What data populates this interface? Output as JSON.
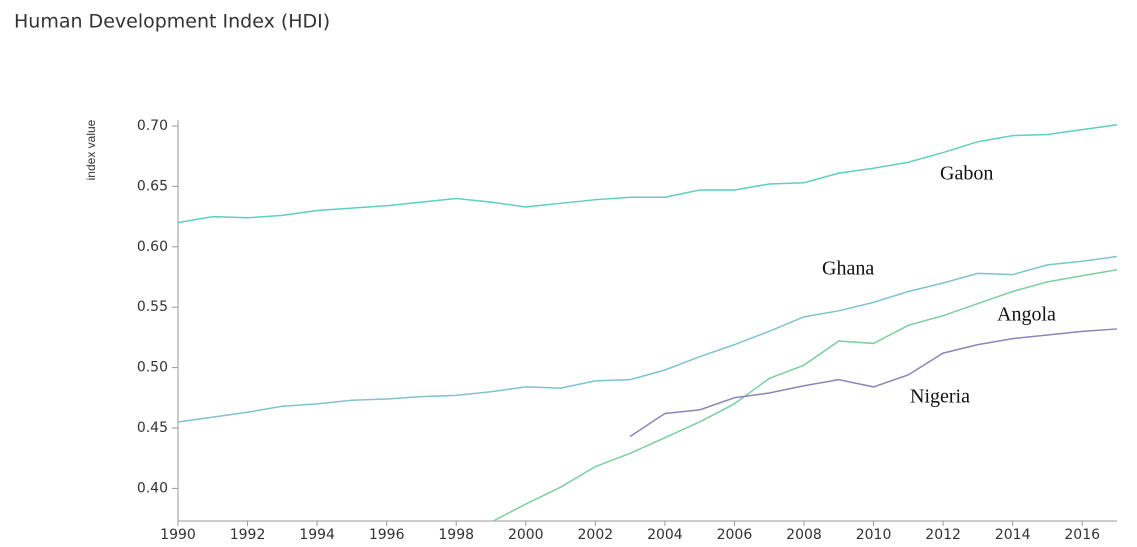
{
  "chart_data": {
    "type": "line",
    "title": "Human Development Index (HDI)",
    "ylabel": "index value",
    "x": [
      1990,
      1991,
      1992,
      1993,
      1994,
      1995,
      1996,
      1997,
      1998,
      1999,
      2000,
      2001,
      2002,
      2003,
      2004,
      2005,
      2006,
      2007,
      2008,
      2009,
      2010,
      2011,
      2012,
      2013,
      2014,
      2015,
      2016,
      2017
    ],
    "series": [
      {
        "name": "Gabon",
        "color": "#5fcfbf",
        "values": [
          0.62,
          0.625,
          0.624,
          0.626,
          0.63,
          0.632,
          0.634,
          0.637,
          0.64,
          0.637,
          0.633,
          0.636,
          0.639,
          0.641,
          0.641,
          0.647,
          0.647,
          0.652,
          0.653,
          0.661,
          0.665,
          0.67,
          0.678,
          0.687,
          0.692,
          0.693,
          0.697,
          0.701
        ]
      },
      {
        "name": "Ghana",
        "color": "#7fc4cc",
        "values": [
          0.455,
          0.459,
          0.463,
          0.468,
          0.47,
          0.473,
          0.474,
          0.476,
          0.477,
          0.48,
          0.484,
          0.483,
          0.489,
          0.49,
          0.498,
          0.509,
          0.519,
          0.53,
          0.542,
          0.547,
          0.554,
          0.563,
          0.57,
          0.578,
          0.577,
          0.585,
          0.588,
          0.592
        ]
      },
      {
        "name": "Angola",
        "color": "#7ccfa0",
        "values": [
          null,
          null,
          null,
          null,
          null,
          null,
          null,
          null,
          null,
          0.372,
          0.387,
          0.401,
          0.418,
          0.429,
          0.442,
          0.455,
          0.47,
          0.491,
          0.502,
          0.522,
          0.52,
          0.535,
          0.543,
          0.553,
          0.563,
          0.571,
          0.576,
          0.581
        ]
      },
      {
        "name": "Nigeria",
        "color": "#8e84b8",
        "values": [
          null,
          null,
          null,
          null,
          null,
          null,
          null,
          null,
          null,
          null,
          null,
          null,
          null,
          0.443,
          0.462,
          0.465,
          0.475,
          0.479,
          0.485,
          0.49,
          0.484,
          0.494,
          0.512,
          0.519,
          0.524,
          0.527,
          0.53,
          0.532
        ]
      }
    ],
    "xlim": [
      1990,
      2017
    ],
    "xticks": [
      1990,
      1992,
      1994,
      1996,
      1998,
      2000,
      2002,
      2004,
      2006,
      2008,
      2010,
      2012,
      2014,
      2016
    ],
    "ylim": [
      0.373,
      0.7
    ],
    "yticks": [
      {
        "value": 0.4,
        "label": "0.40"
      },
      0.45,
      {
        "value": 0.5,
        "label": "0.50"
      },
      0.55,
      {
        "value": 0.6,
        "label": "0.60"
      },
      0.65,
      {
        "value": 0.7,
        "label": "0.70"
      }
    ]
  }
}
